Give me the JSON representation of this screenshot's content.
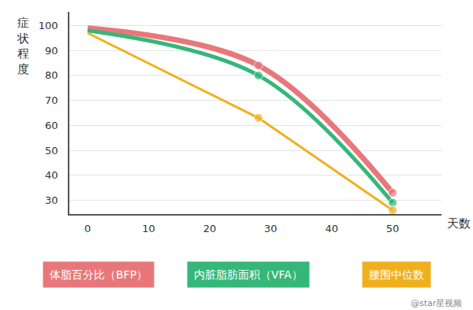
{
  "chart_data": {
    "type": "line",
    "xlabel": "天数",
    "ylabel": "症状程度",
    "x": [
      0,
      28,
      50
    ],
    "xlim": [
      -3,
      58
    ],
    "ylim": [
      24.5,
      105.5
    ],
    "xticks": [
      0,
      10,
      20,
      30,
      40,
      50
    ],
    "yticks": [
      30,
      40,
      50,
      60,
      70,
      80,
      90,
      100
    ],
    "grid": true,
    "marker": "circle",
    "series": [
      {
        "name": "体脂百分比（BFP）",
        "color": "#e8777b",
        "line_style": "spline",
        "values": [
          99,
          84,
          33
        ]
      },
      {
        "name": "内脏脂肪面积（VFA）",
        "color": "#35b77a",
        "line_style": "spline",
        "values": [
          98,
          80,
          29
        ]
      },
      {
        "name": "腰围中位数",
        "color": "#f0b01e",
        "line_style": "linear",
        "values": [
          97,
          63,
          26
        ]
      }
    ],
    "annotations": [
      "@star星视频"
    ]
  }
}
